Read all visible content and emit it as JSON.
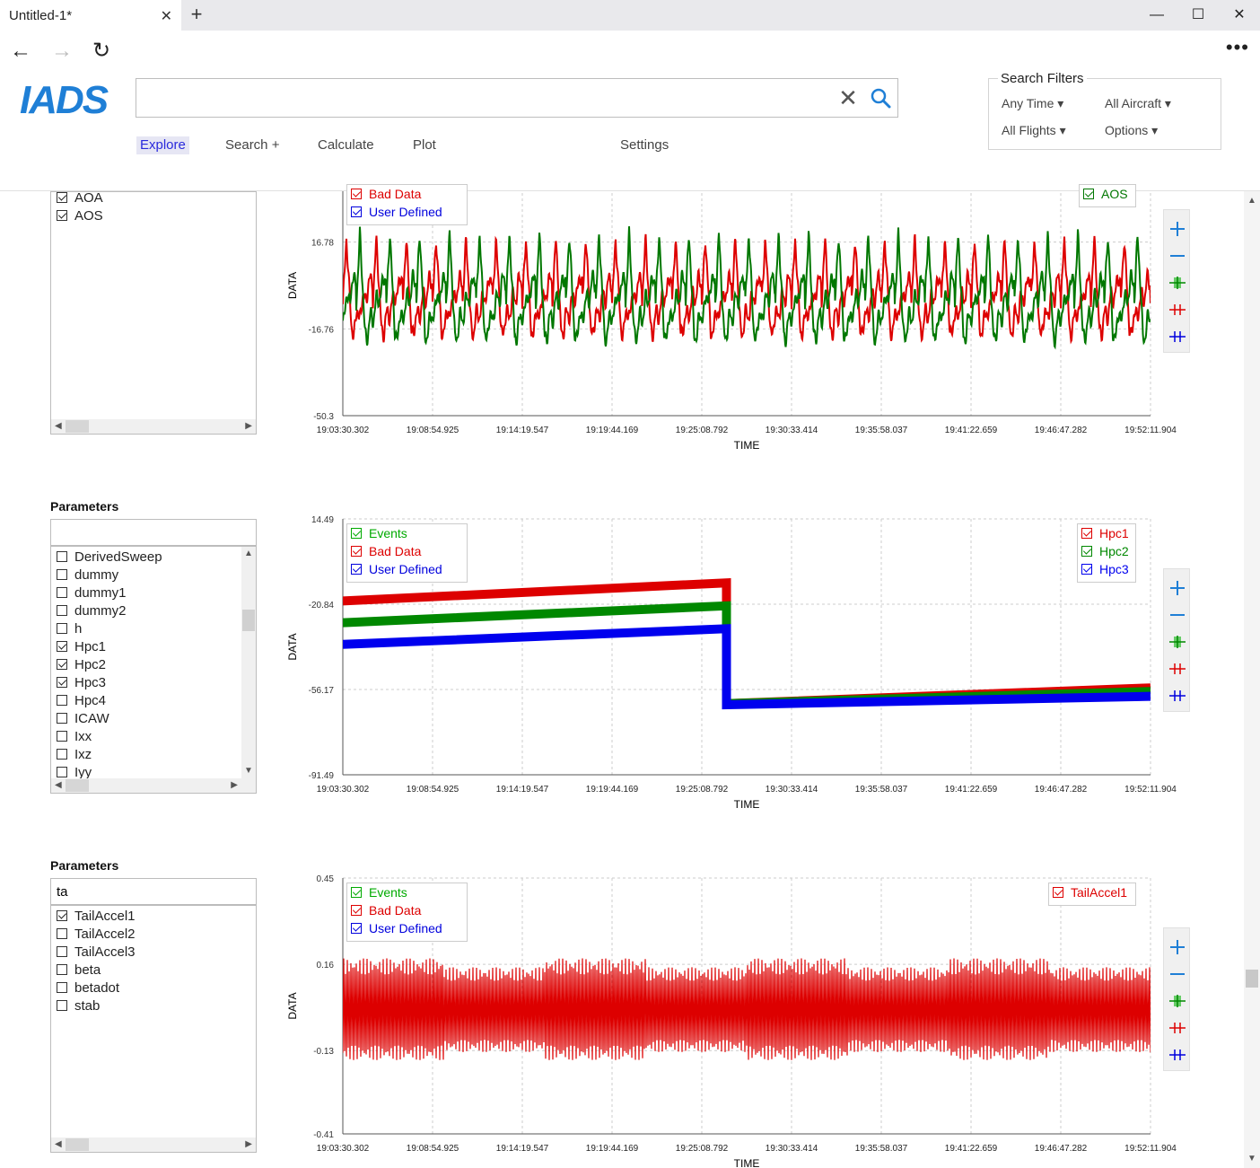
{
  "window": {
    "tab_title": "Untitled-1*",
    "close_tab": "✕",
    "new_tab": "+",
    "minimize": "—",
    "maximize": "☐",
    "close": "✕"
  },
  "nav": {
    "back": "←",
    "forward": "→",
    "reload": "↻",
    "more": "•••"
  },
  "app": {
    "logo_text": "IADS",
    "brand_color": "#1f7fd6"
  },
  "search": {
    "value": "",
    "placeholder": "",
    "clear": "✕"
  },
  "menu": {
    "explore": "Explore",
    "search": "Search +",
    "calculate": "Calculate",
    "plot": "Plot",
    "settings": "Settings"
  },
  "filters": {
    "title": "Search Filters",
    "any_time": "Any Time ▾",
    "all_aircraft": "All Aircraft ▾",
    "all_flights": "All Flights ▾",
    "options": "Options ▾"
  },
  "panels": [
    {
      "params_title": "",
      "filter_value": "",
      "items": [
        {
          "label": "AOA",
          "checked": true
        },
        {
          "label": "AOS",
          "checked": true
        }
      ]
    },
    {
      "params_title": "Parameters",
      "filter_value": "",
      "items": [
        {
          "label": "DerivedSweep",
          "checked": false
        },
        {
          "label": "dummy",
          "checked": false
        },
        {
          "label": "dummy1",
          "checked": false
        },
        {
          "label": "dummy2",
          "checked": false
        },
        {
          "label": "h",
          "checked": false
        },
        {
          "label": "Hpc1",
          "checked": true
        },
        {
          "label": "Hpc2",
          "checked": true
        },
        {
          "label": "Hpc3",
          "checked": true
        },
        {
          "label": "Hpc4",
          "checked": false
        },
        {
          "label": "ICAW",
          "checked": false
        },
        {
          "label": "Ixx",
          "checked": false
        },
        {
          "label": "Ixz",
          "checked": false
        },
        {
          "label": "Iyy",
          "checked": false
        }
      ]
    },
    {
      "params_title": "Parameters",
      "filter_value": "ta",
      "items": [
        {
          "label": "TailAccel1",
          "checked": true
        },
        {
          "label": "TailAccel2",
          "checked": false
        },
        {
          "label": "TailAccel3",
          "checked": false
        },
        {
          "label": "beta",
          "checked": false
        },
        {
          "label": "betadot",
          "checked": false
        },
        {
          "label": "stab",
          "checked": false
        }
      ]
    }
  ],
  "chart_data": [
    {
      "type": "line",
      "xlabel": "TIME",
      "ylabel": "DATA",
      "y_ticks": [
        "16.78",
        "-16.76",
        "-50.3"
      ],
      "ylim": [
        -50.3,
        50.3
      ],
      "x_ticks": [
        "19:03:30.302",
        "19:08:54.925",
        "19:14:19.547",
        "19:19:44.169",
        "19:25:08.792",
        "19:30:33.414",
        "19:35:58.037",
        "19:41:22.659",
        "19:46:47.282",
        "19:52:11.904"
      ],
      "event_legend": [
        {
          "name": "Bad Data",
          "color": "#dd0000"
        },
        {
          "name": "User Defined",
          "color": "#0000dd"
        }
      ],
      "series": [
        {
          "name": "AOA",
          "color": "#dd0000",
          "shape": "periodic",
          "cycles": 27,
          "amplitude": 18
        },
        {
          "name": "AOS",
          "color": "#007700",
          "shape": "periodic",
          "cycles": 27,
          "amplitude": 20
        }
      ],
      "series_legend": [
        {
          "name": "AOS",
          "color": "#007700"
        }
      ]
    },
    {
      "type": "line",
      "xlabel": "TIME",
      "ylabel": "DATA",
      "y_ticks": [
        "14.49",
        "-20.84",
        "-56.17",
        "-91.49"
      ],
      "ylim": [
        -91.49,
        14.49
      ],
      "x_ticks": [
        "19:03:30.302",
        "19:08:54.925",
        "19:14:19.547",
        "19:19:44.169",
        "19:25:08.792",
        "19:30:33.414",
        "19:35:58.037",
        "19:41:22.659",
        "19:46:47.282",
        "19:52:11.904"
      ],
      "event_legend": [
        {
          "name": "Events",
          "color": "#00aa00"
        },
        {
          "name": "Bad Data",
          "color": "#dd0000"
        },
        {
          "name": "User Defined",
          "color": "#0000dd"
        }
      ],
      "series": [
        {
          "name": "Hpc1",
          "color": "#dd0000",
          "points": [
            [
              0,
              -19.5
            ],
            [
              0.475,
              -12.0
            ],
            [
              0.475,
              -62.0
            ],
            [
              1.0,
              -55.5
            ]
          ]
        },
        {
          "name": "Hpc2",
          "color": "#008800",
          "points": [
            [
              0,
              -28.5
            ],
            [
              0.475,
              -21.5
            ],
            [
              0.475,
              -62.0
            ],
            [
              1.0,
              -57.0
            ]
          ]
        },
        {
          "name": "Hpc3",
          "color": "#0000ee",
          "points": [
            [
              0,
              -37.5
            ],
            [
              0.475,
              -31.0
            ],
            [
              0.475,
              -62.5
            ],
            [
              1.0,
              -59.0
            ]
          ]
        }
      ],
      "series_legend": [
        {
          "name": "Hpc1",
          "color": "#dd0000"
        },
        {
          "name": "Hpc2",
          "color": "#008800"
        },
        {
          "name": "Hpc3",
          "color": "#0000ee"
        }
      ]
    },
    {
      "type": "line",
      "xlabel": "TIME",
      "ylabel": "DATA",
      "y_ticks": [
        "0.45",
        "0.16",
        "-0.13",
        "-0.41"
      ],
      "ylim": [
        -0.41,
        0.45
      ],
      "x_ticks": [
        "19:03:30.302",
        "19:08:54.925",
        "19:14:19.547",
        "19:19:44.169",
        "19:25:08.792",
        "19:30:33.414",
        "19:35:58.037",
        "19:41:22.659",
        "19:46:47.282",
        "19:52:11.904"
      ],
      "event_legend": [
        {
          "name": "Events",
          "color": "#00aa00"
        },
        {
          "name": "Bad Data",
          "color": "#dd0000"
        },
        {
          "name": "User Defined",
          "color": "#0000dd"
        }
      ],
      "series": [
        {
          "name": "TailAccel1",
          "color": "#dd0000",
          "shape": "vibration",
          "ymin": -0.2,
          "ymax": 0.2
        }
      ],
      "series_legend": [
        {
          "name": "TailAccel1",
          "color": "#dd0000"
        }
      ]
    }
  ]
}
